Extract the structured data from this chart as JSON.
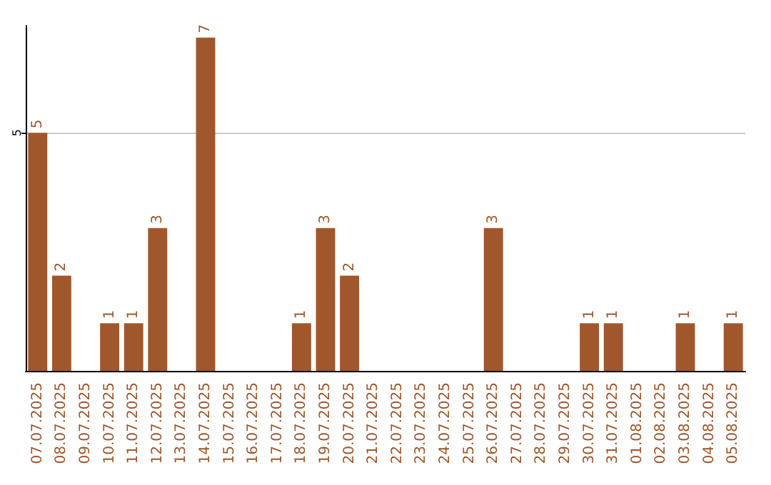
{
  "chart_data": {
    "type": "bar",
    "categories": [
      "07.07.2025",
      "08.07.2025",
      "09.07.2025",
      "10.07.2025",
      "11.07.2025",
      "12.07.2025",
      "13.07.2025",
      "14.07.2025",
      "15.07.2025",
      "16.07.2025",
      "17.07.2025",
      "18.07.2025",
      "19.07.2025",
      "20.07.2025",
      "21.07.2025",
      "22.07.2025",
      "23.07.2025",
      "24.07.2025",
      "25.07.2025",
      "26.07.2025",
      "27.07.2025",
      "28.07.2025",
      "29.07.2025",
      "30.07.2025",
      "31.07.2025",
      "01.08.2025",
      "02.08.2025",
      "03.08.2025",
      "04.08.2025",
      "05.08.2025"
    ],
    "values": [
      5,
      2,
      0,
      1,
      1,
      3,
      0,
      7,
      0,
      0,
      0,
      1,
      3,
      2,
      0,
      0,
      0,
      0,
      0,
      3,
      0,
      0,
      0,
      1,
      1,
      0,
      0,
      1,
      0,
      1
    ],
    "value_labels": [
      "5",
      "2",
      null,
      "1",
      "1",
      "3",
      null,
      "7",
      null,
      null,
      null,
      "1",
      "3",
      "2",
      null,
      null,
      null,
      null,
      null,
      "3",
      null,
      null,
      null,
      "1",
      "1",
      null,
      null,
      "1",
      null,
      "1"
    ],
    "color": "#a0572b",
    "ylim": [
      0,
      7.25
    ],
    "yticks": [
      5
    ],
    "grid": "y"
  }
}
